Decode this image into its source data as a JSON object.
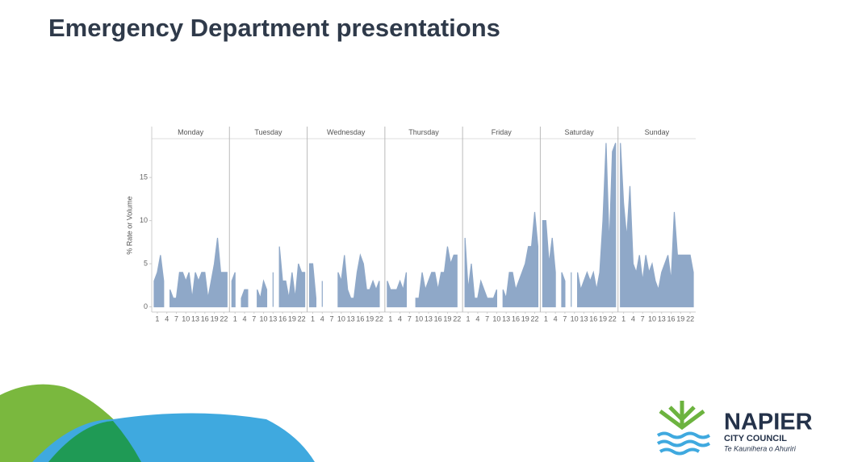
{
  "title": "Emergency Department presentations",
  "chart_data": {
    "type": "area",
    "y_label": "% Rate or Volume",
    "color": "#8fa8c8",
    "x": [
      0,
      1,
      2,
      3,
      4,
      5,
      6,
      7,
      8,
      9,
      10,
      11,
      12,
      13,
      14,
      15,
      16,
      17,
      18,
      19,
      20,
      21,
      22,
      23
    ],
    "xlim": [
      0,
      23
    ],
    "xticks": [
      1,
      4,
      7,
      10,
      13,
      16,
      19,
      22
    ],
    "ylim": [
      -0.6,
      19.5
    ],
    "yticks": [
      0,
      5,
      10,
      15
    ],
    "grid": false,
    "panels": [
      {
        "name": "Monday",
        "values": [
          3,
          4,
          6,
          3,
          null,
          2,
          1,
          1,
          4,
          4,
          3,
          4,
          1,
          4,
          3,
          4,
          4,
          1,
          3,
          5,
          8,
          4,
          4,
          4
        ]
      },
      {
        "name": "Tuesday",
        "values": [
          3,
          4,
          null,
          1,
          2,
          2,
          null,
          null,
          2,
          1,
          3,
          2,
          null,
          4,
          null,
          7,
          3,
          3,
          1,
          4,
          1,
          5,
          4,
          4
        ]
      },
      {
        "name": "Wednesday",
        "values": [
          5,
          5,
          1,
          null,
          3,
          null,
          null,
          null,
          null,
          4,
          3,
          6,
          2,
          1,
          1,
          4,
          6,
          5,
          2,
          2,
          3,
          2,
          3,
          null
        ]
      },
      {
        "name": "Thursday",
        "values": [
          3,
          2,
          2,
          2,
          3,
          2,
          4,
          null,
          null,
          1,
          1,
          4,
          2,
          3,
          4,
          4,
          2,
          4,
          4,
          7,
          5,
          6,
          6,
          null
        ]
      },
      {
        "name": "Friday",
        "values": [
          8,
          2,
          5,
          1,
          1,
          3,
          2,
          1,
          1,
          1,
          2,
          null,
          2,
          1,
          4,
          4,
          2,
          3,
          4,
          5,
          7,
          7,
          11,
          7
        ]
      },
      {
        "name": "Saturday",
        "values": [
          10,
          10,
          5,
          8,
          4,
          null,
          4,
          3,
          null,
          4,
          null,
          4,
          2,
          3,
          4,
          3,
          4,
          2,
          4,
          10,
          19,
          7,
          18,
          19
        ]
      },
      {
        "name": "Sunday",
        "values": [
          19,
          12,
          8,
          14,
          5,
          4,
          6,
          3,
          6,
          4,
          5,
          3,
          2,
          4,
          5,
          6,
          3,
          11,
          6,
          6,
          6,
          6,
          6,
          4
        ]
      }
    ]
  },
  "logo": {
    "name": "NAPIER",
    "subtitle": "CITY COUNCIL",
    "tagline": "Te Kaunihera o Ahuriri"
  }
}
